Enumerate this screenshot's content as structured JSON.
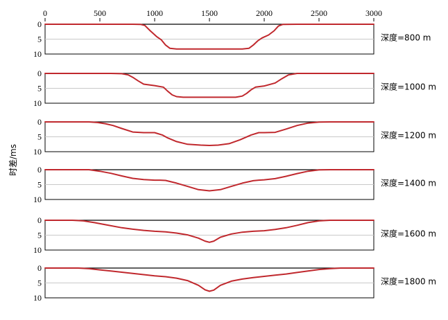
{
  "chart_data": {
    "type": "line",
    "ylabel": "时差/ms",
    "xlim": [
      0,
      3000
    ],
    "xticks": [
      0,
      500,
      1000,
      1500,
      2000,
      2500,
      3000
    ],
    "ylim": [
      0,
      10
    ],
    "yticks": [
      0,
      5,
      10
    ],
    "y_inverted": true,
    "grid": "horizontal",
    "line_color": "#c0282d",
    "panels": [
      {
        "label": "深度=800 m",
        "x": [
          0,
          800,
          870,
          910,
          960,
          1020,
          1060,
          1100,
          1140,
          1200,
          1500,
          1800,
          1860,
          1900,
          1940,
          1980,
          2040,
          2090,
          2130,
          2170,
          2300,
          3000
        ],
        "y": [
          0,
          0,
          0.05,
          0.4,
          2.2,
          4.2,
          5.2,
          7.0,
          8.1,
          8.3,
          8.3,
          8.3,
          8.1,
          7.0,
          5.6,
          4.6,
          3.6,
          2.2,
          0.6,
          0.05,
          0,
          0
        ]
      },
      {
        "label": "深度=1000 m",
        "x": [
          0,
          600,
          700,
          760,
          800,
          850,
          900,
          1000,
          1080,
          1120,
          1160,
          1200,
          1260,
          1500,
          1740,
          1800,
          1840,
          1880,
          1920,
          2000,
          2100,
          2160,
          2220,
          2300,
          3000
        ],
        "y": [
          0,
          0,
          0.1,
          0.5,
          1.3,
          2.5,
          3.6,
          4.1,
          4.6,
          6.0,
          7.2,
          7.8,
          8.0,
          8.0,
          8.0,
          7.6,
          6.7,
          5.5,
          4.6,
          4.2,
          3.2,
          1.8,
          0.5,
          0,
          0
        ]
      },
      {
        "label": "深度=1200 m",
        "x": [
          0,
          400,
          480,
          550,
          620,
          700,
          800,
          900,
          1000,
          1070,
          1120,
          1200,
          1300,
          1420,
          1500,
          1580,
          1680,
          1780,
          1880,
          1950,
          2000,
          2100,
          2200,
          2300,
          2400,
          2500,
          2600,
          3000
        ],
        "y": [
          0,
          0,
          0.2,
          0.6,
          1.2,
          2.2,
          3.4,
          3.6,
          3.6,
          4.4,
          5.4,
          6.6,
          7.5,
          7.8,
          7.9,
          7.8,
          7.3,
          6.0,
          4.4,
          3.6,
          3.6,
          3.5,
          2.4,
          1.2,
          0.4,
          0.05,
          0,
          0
        ]
      },
      {
        "label": "深度=1400 m",
        "x": [
          0,
          400,
          500,
          600,
          700,
          800,
          900,
          1000,
          1050,
          1100,
          1200,
          1300,
          1400,
          1500,
          1600,
          1700,
          1800,
          1900,
          1950,
          2000,
          2100,
          2200,
          2300,
          2400,
          2500,
          2600,
          3000
        ],
        "y": [
          0,
          0,
          0.5,
          1.2,
          2.1,
          2.9,
          3.3,
          3.5,
          3.5,
          3.6,
          4.5,
          5.6,
          6.7,
          7.1,
          6.7,
          5.6,
          4.5,
          3.7,
          3.5,
          3.4,
          3.0,
          2.2,
          1.3,
          0.5,
          0.05,
          0,
          0
        ]
      },
      {
        "label": "深度=1600 m",
        "x": [
          0,
          250,
          350,
          450,
          550,
          700,
          800,
          900,
          1000,
          1100,
          1200,
          1300,
          1400,
          1460,
          1500,
          1540,
          1600,
          1700,
          1800,
          1900,
          2000,
          2100,
          2200,
          2300,
          2400,
          2500,
          2600,
          2700,
          3000
        ],
        "y": [
          0,
          0,
          0.2,
          0.8,
          1.5,
          2.5,
          3.0,
          3.4,
          3.7,
          3.9,
          4.3,
          4.9,
          6.0,
          7.0,
          7.4,
          7.0,
          5.7,
          4.6,
          4.0,
          3.7,
          3.5,
          3.1,
          2.5,
          1.7,
          0.8,
          0.2,
          0,
          0,
          0
        ]
      },
      {
        "label": "深度=1800 m",
        "x": [
          0,
          300,
          400,
          500,
          600,
          700,
          800,
          900,
          1000,
          1100,
          1200,
          1300,
          1400,
          1460,
          1500,
          1540,
          1600,
          1700,
          1800,
          1900,
          2000,
          2100,
          2200,
          2300,
          2400,
          2500,
          2600,
          2700,
          2800,
          3000
        ],
        "y": [
          0,
          0,
          0.2,
          0.6,
          1.0,
          1.4,
          1.8,
          2.2,
          2.6,
          2.9,
          3.4,
          4.2,
          5.8,
          7.3,
          7.8,
          7.4,
          5.8,
          4.4,
          3.7,
          3.2,
          2.8,
          2.4,
          2.0,
          1.5,
          1.0,
          0.5,
          0.2,
          0,
          0,
          0
        ]
      }
    ]
  }
}
